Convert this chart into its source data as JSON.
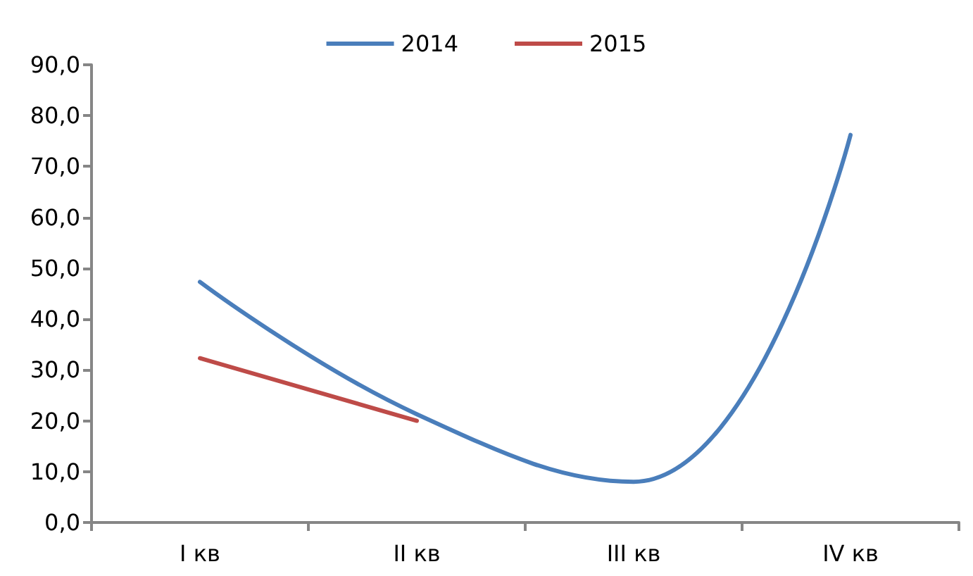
{
  "chart_data": {
    "type": "line",
    "categories": [
      "I кв",
      "II кв",
      "III кв",
      "IV кв"
    ],
    "series": [
      {
        "name": "2014",
        "color": "#4a7ebb",
        "values": [
          47.3,
          21.3,
          8.0,
          76.2
        ]
      },
      {
        "name": "2015",
        "color": "#be4b48",
        "values": [
          32.3,
          20.0,
          null,
          null
        ]
      }
    ],
    "ylim": [
      0,
      90
    ],
    "yticks": [
      {
        "value": 0,
        "label": "0,0"
      },
      {
        "value": 10,
        "label": "10,0"
      },
      {
        "value": 20,
        "label": "20,0"
      },
      {
        "value": 30,
        "label": "30,0"
      },
      {
        "value": 40,
        "label": "40,0"
      },
      {
        "value": 50,
        "label": "50,0"
      },
      {
        "value": 60,
        "label": "60,0"
      },
      {
        "value": 70,
        "label": "70,0"
      },
      {
        "value": 80,
        "label": "80,0"
      },
      {
        "value": 90,
        "label": "90,0"
      }
    ],
    "grid": false,
    "legend": "top",
    "marker": "none",
    "line_style": "solid"
  }
}
